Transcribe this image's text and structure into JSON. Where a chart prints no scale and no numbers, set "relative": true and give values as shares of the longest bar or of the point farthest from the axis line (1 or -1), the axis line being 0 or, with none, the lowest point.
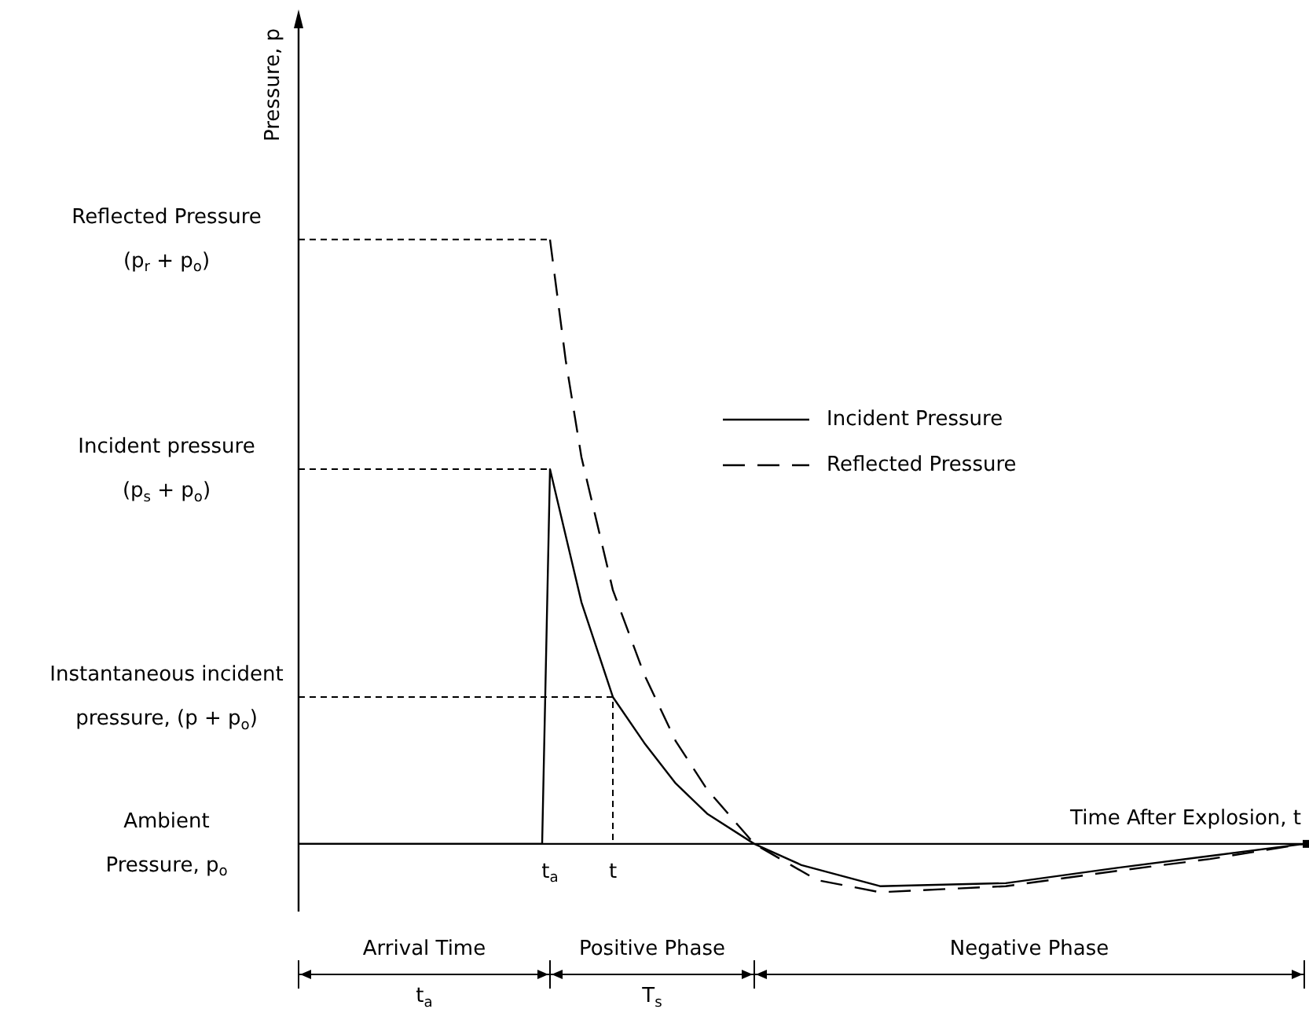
{
  "chart_data": {
    "type": "line",
    "relative": true,
    "xlabel": "Time After Explosion, t",
    "ylabel": "Pressure, p",
    "categories": [
      null,
      null,
      null,
      null,
      null,
      null,
      null,
      null,
      null,
      null,
      null,
      null,
      null,
      null,
      null,
      null,
      null,
      null,
      null,
      null,
      null,
      null,
      null,
      null,
      null,
      null,
      null,
      null,
      null,
      null,
      null,
      null,
      "t$_{a}$",
      null,
      null,
      null,
      null,
      null,
      null,
      null,
      "t",
      null,
      null,
      null,
      null,
      null,
      null,
      null,
      null,
      null,
      null,
      null,
      null,
      null,
      null,
      null,
      null,
      null,
      null,
      null,
      null,
      null,
      null,
      null,
      null,
      null,
      null,
      null,
      null,
      null,
      null,
      null,
      null,
      null,
      null,
      null,
      null,
      null,
      null,
      null,
      null,
      null,
      null,
      null,
      null,
      null,
      null,
      null,
      null,
      null,
      null,
      null,
      null,
      null,
      null,
      null,
      null,
      null,
      null,
      null,
      null,
      null,
      null,
      null,
      null,
      null,
      null,
      null,
      null,
      null,
      null,
      null,
      null,
      null,
      null,
      null,
      null,
      null,
      null,
      null,
      null,
      null,
      null,
      null,
      null,
      null,
      null,
      null,
      null
    ],
    "legend": "right",
    "marker": "none",
    "series": [
      {
        "name": "Incident Pressure",
        "color": "#000000",
        "line_style": "solid",
        "values": [
          0,
          null,
          null,
          null,
          null,
          null,
          null,
          null,
          null,
          null,
          null,
          null,
          null,
          null,
          null,
          null,
          null,
          null,
          null,
          null,
          null,
          null,
          null,
          null,
          null,
          null,
          null,
          null,
          null,
          null,
          null,
          0,
          0.62,
          null,
          0.51,
          null,
          0.4,
          null,
          null,
          null,
          0.243,
          null,
          null,
          null,
          0.167,
          null,
          null,
          null,
          0.1,
          null,
          null,
          null,
          0.05,
          null,
          null,
          null,
          null,
          null,
          0,
          null,
          null,
          null,
          null,
          null,
          -0.035,
          null,
          null,
          null,
          null,
          null,
          null,
          null,
          null,
          null,
          -0.07,
          null,
          null,
          null,
          null,
          null,
          null,
          null,
          null,
          null,
          null,
          null,
          null,
          null,
          null,
          null,
          -0.065,
          null,
          null,
          null,
          null,
          null,
          null,
          null,
          null,
          null,
          null,
          null,
          null,
          null,
          -0.04,
          null,
          null,
          null,
          null,
          null,
          null,
          null,
          null,
          null,
          null,
          null,
          -0.02,
          null,
          null,
          null,
          null,
          null,
          null,
          null,
          null,
          null,
          null,
          null,
          0
        ]
      },
      {
        "name": "Reflected Pressure",
        "color": "#000000",
        "line_style": "dashed",
        "values": [
          null,
          null,
          null,
          null,
          null,
          null,
          null,
          null,
          null,
          null,
          null,
          null,
          null,
          null,
          null,
          null,
          null,
          null,
          null,
          null,
          null,
          null,
          null,
          null,
          null,
          null,
          null,
          null,
          null,
          null,
          null,
          null,
          1,
          null,
          0.8,
          null,
          0.64,
          null,
          null,
          null,
          0.42,
          null,
          null,
          null,
          0.28,
          null,
          null,
          null,
          0.17,
          null,
          null,
          null,
          0.09,
          null,
          null,
          null,
          null,
          null,
          0,
          null,
          null,
          null,
          null,
          null,
          null,
          null,
          -0.06,
          null,
          null,
          null,
          null,
          null,
          null,
          null,
          -0.08,
          null,
          null,
          null,
          null,
          null,
          null,
          null,
          null,
          null,
          null,
          null,
          null,
          null,
          null,
          null,
          -0.07,
          null,
          null,
          null,
          null,
          null,
          null,
          null,
          null,
          null,
          null,
          null,
          null,
          null,
          -0.045,
          null,
          null,
          null,
          null,
          null,
          null,
          null,
          null,
          null,
          null,
          null,
          -0.025,
          null,
          null,
          null,
          null,
          null,
          null,
          null,
          null,
          null,
          null,
          null,
          0
        ]
      }
    ],
    "annotations": [
      "Reflected Pressure\n(p$_{r}$ + p$_{o}$)",
      "Incident pressure\n(p$_{s}$ + p$_{o}$)",
      "Instantaneous incident\npressure, (p + p$_{o}$)",
      "Ambient\nPressure, p$_{o}$",
      "Arrival Time\nt$_{a}$",
      "Positive Phase\nT$_{s}$",
      "Negative Phase"
    ]
  }
}
